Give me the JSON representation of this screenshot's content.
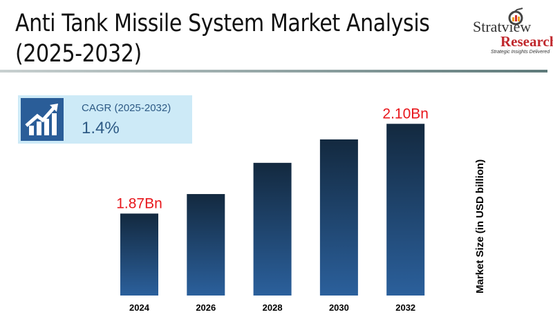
{
  "header": {
    "title_line1": "Anti Tank Missile System Market Analysis",
    "title_line2": "(2025-2032)"
  },
  "logo": {
    "name": "Stratview",
    "sub": "Research",
    "tagline": "Strategic Insights Delivered"
  },
  "cagr": {
    "label": "CAGR (2025-2032)",
    "value": "1.4%",
    "icon": "growth-chart-icon"
  },
  "colors": {
    "bar_top": "#13293f",
    "bar_bottom": "#2b609c",
    "label": "#e8161b"
  },
  "chart_data": {
    "type": "bar",
    "title": "Anti Tank Missile System Market Analysis (2025-2032)",
    "categories": [
      "2024",
      "2026",
      "2028",
      "2030",
      "2032"
    ],
    "values": [
      1.87,
      1.92,
      2.0,
      2.06,
      2.1
    ],
    "data_labels": [
      "1.87Bn",
      "",
      "",
      "",
      "2.10Bn"
    ],
    "xlabel": "",
    "ylabel": "Market Size (in USD billion)",
    "ylim": [
      1.66,
      2.12
    ],
    "grid": false
  }
}
